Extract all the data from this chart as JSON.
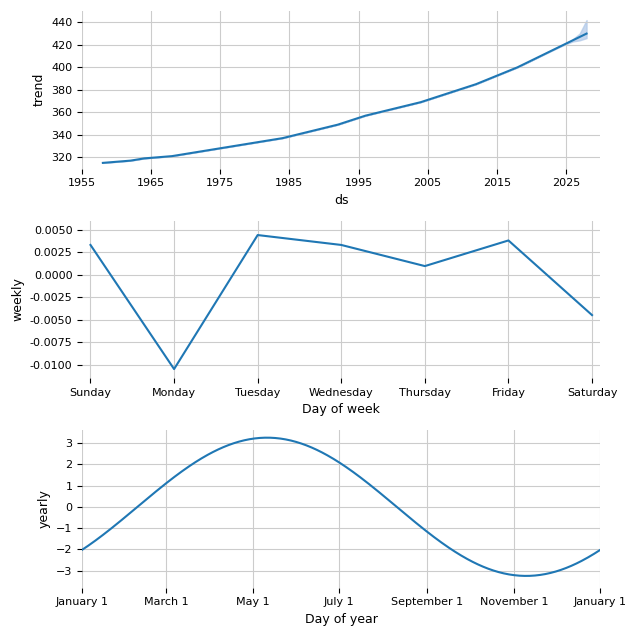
{
  "trend_years": [
    1958,
    1960,
    1962,
    1964,
    1966,
    1968,
    1970,
    1972,
    1974,
    1976,
    1978,
    1980,
    1982,
    1984,
    1986,
    1988,
    1990,
    1992,
    1994,
    1996,
    1998,
    2000,
    2002,
    2004,
    2006,
    2008,
    2010,
    2012,
    2014,
    2016,
    2018,
    2020,
    2022,
    2024,
    2026,
    2027,
    2028
  ],
  "trend_values": [
    315,
    316,
    317,
    319,
    320,
    321,
    323,
    325,
    327,
    329,
    331,
    333,
    335,
    337,
    340,
    343,
    346,
    349,
    353,
    357,
    360,
    363,
    366,
    369,
    373,
    377,
    381,
    385,
    390,
    395,
    400,
    406,
    412,
    418,
    424,
    427,
    430
  ],
  "trend_upper": [
    315,
    316,
    317,
    319,
    320,
    321,
    323,
    325,
    327,
    329,
    331,
    333,
    335,
    337,
    340,
    343,
    346,
    349,
    353,
    357,
    360,
    363,
    366,
    369,
    373,
    377,
    381,
    385,
    390,
    395,
    400,
    406,
    412,
    418,
    425,
    430,
    442
  ],
  "trend_lower": [
    315,
    316,
    317,
    319,
    320,
    321,
    323,
    325,
    327,
    329,
    331,
    333,
    335,
    337,
    340,
    343,
    346,
    349,
    353,
    357,
    360,
    363,
    366,
    369,
    373,
    377,
    381,
    385,
    390,
    395,
    400,
    406,
    412,
    418,
    423,
    424,
    426
  ],
  "trend_xlim": [
    1955,
    2030
  ],
  "trend_ylim": [
    310,
    450
  ],
  "trend_yticks": [
    320,
    340,
    360,
    380,
    400,
    420,
    440
  ],
  "trend_xticks": [
    1955,
    1965,
    1975,
    1985,
    1995,
    2005,
    2015,
    2025
  ],
  "trend_xlabel": "ds",
  "trend_ylabel": "trend",
  "weekly_x": [
    0,
    1,
    2,
    3,
    4,
    5,
    6
  ],
  "weekly_values": [
    0.0033,
    -0.0105,
    0.0044,
    0.0033,
    0.00095,
    0.0038,
    -0.0045
  ],
  "weekly_labels": [
    "Sunday",
    "Monday",
    "Tuesday",
    "Wednesday",
    "Thursday",
    "Friday",
    "Saturday"
  ],
  "weekly_xlabel": "Day of week",
  "weekly_ylabel": "weekly",
  "weekly_ylim": [
    -0.0115,
    0.006
  ],
  "weekly_yticks": [
    -0.01,
    -0.0075,
    -0.005,
    -0.0025,
    0.0,
    0.0025,
    0.005
  ],
  "yearly_x_days": [
    1,
    60,
    121,
    182,
    244,
    305,
    366
  ],
  "yearly_x_labels": [
    "January 1",
    "March 1",
    "May 1",
    "July 1",
    "September 1",
    "November 1",
    "January 1"
  ],
  "yearly_xlabel": "Day of year",
  "yearly_ylabel": "yearly",
  "yearly_ylim": [
    -3.8,
    3.6
  ],
  "yearly_yticks": [
    -3,
    -2,
    -1,
    0,
    1,
    2,
    3
  ],
  "line_color": "#1f77b4",
  "fill_color": "#aec7e8",
  "background_color": "#ffffff",
  "grid_color": "#cccccc"
}
